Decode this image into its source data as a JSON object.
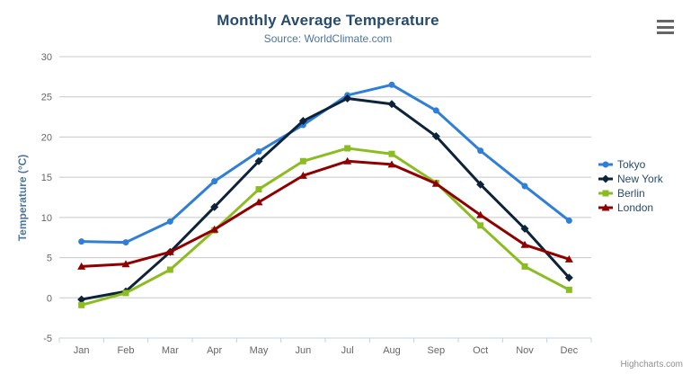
{
  "chart": {
    "title": "Monthly Average Temperature",
    "subtitle": "Source: WorldClimate.com",
    "credits": "Highcharts.com",
    "menu_icon": "hamburger-icon",
    "colors": {
      "title": "#274b6d",
      "subtitle": "#4d759e",
      "axis_label": "#666666",
      "axis_line": "#c0d0e0",
      "gridline": "#c8c8c8",
      "legend_text": "#274b6d",
      "credits": "#909090",
      "menu_icon": "#666666",
      "background": "#ffffff"
    }
  },
  "chart_data": {
    "type": "line",
    "title": "Monthly Average Temperature",
    "subtitle": "Source: WorldClimate.com",
    "categories": [
      "Jan",
      "Feb",
      "Mar",
      "Apr",
      "May",
      "Jun",
      "Jul",
      "Aug",
      "Sep",
      "Oct",
      "Nov",
      "Dec"
    ],
    "series": [
      {
        "name": "Tokyo",
        "color": "#2f7ed8",
        "marker": "circle",
        "values": [
          7.0,
          6.9,
          9.5,
          14.5,
          18.2,
          21.5,
          25.2,
          26.5,
          23.3,
          18.3,
          13.9,
          9.6
        ]
      },
      {
        "name": "New York",
        "color": "#0d233a",
        "marker": "diamond",
        "values": [
          -0.2,
          0.8,
          5.7,
          11.3,
          17.0,
          22.0,
          24.8,
          24.1,
          20.1,
          14.1,
          8.6,
          2.5
        ]
      },
      {
        "name": "Berlin",
        "color": "#8bbc21",
        "marker": "square",
        "values": [
          -0.9,
          0.6,
          3.5,
          8.4,
          13.5,
          17.0,
          18.6,
          17.9,
          14.3,
          9.0,
          3.9,
          1.0
        ]
      },
      {
        "name": "London",
        "color": "#910000",
        "marker": "triangle",
        "values": [
          3.9,
          4.2,
          5.7,
          8.5,
          11.9,
          15.2,
          17.0,
          16.6,
          14.2,
          10.3,
          6.6,
          4.8
        ]
      }
    ],
    "xlabel": "",
    "ylabel": "Temperature (°C)",
    "ylim": [
      -5,
      30
    ],
    "ytick_interval": 5,
    "grid": true,
    "legend_position": "right"
  }
}
